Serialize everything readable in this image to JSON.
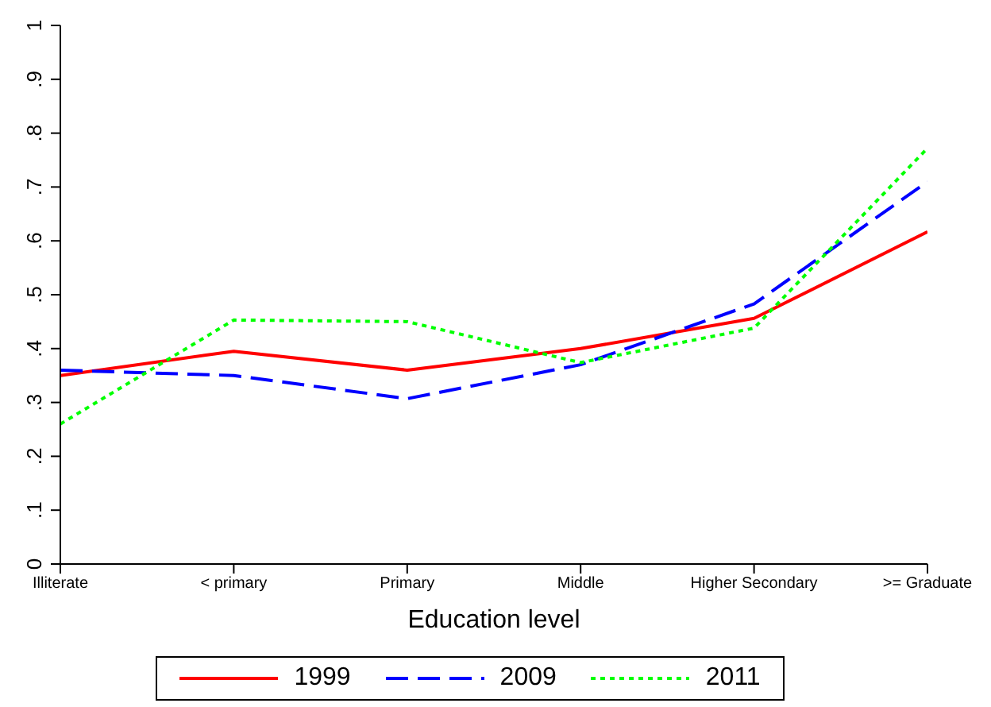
{
  "chart_data": {
    "type": "line",
    "xlabel": "Education level",
    "categories": [
      "Illiterate",
      "< primary",
      "Primary",
      "Middle",
      "Higher Secondary",
      ">= Graduate"
    ],
    "series": [
      {
        "name": "1999",
        "color": "#ff0000",
        "line_style": "solid",
        "values": [
          0.35,
          0.395,
          0.36,
          0.4,
          0.456,
          0.617
        ]
      },
      {
        "name": "2009",
        "color": "#0000ff",
        "line_style": "dashed",
        "values": [
          0.36,
          0.35,
          0.307,
          0.37,
          0.483,
          0.71
        ]
      },
      {
        "name": "2011",
        "color": "#00ff00",
        "line_style": "dotted",
        "values": [
          0.26,
          0.453,
          0.45,
          0.374,
          0.438,
          0.772
        ]
      }
    ],
    "ylim": [
      0,
      1
    ],
    "yticks": [
      {
        "value": 0,
        "label": "0"
      },
      {
        "value": 0.1,
        "label": ".1"
      },
      {
        "value": 0.2,
        "label": ".2"
      },
      {
        "value": 0.3,
        "label": ".3"
      },
      {
        "value": 0.4,
        "label": ".4"
      },
      {
        "value": 0.5,
        "label": ".5"
      },
      {
        "value": 0.6,
        "label": ".6"
      },
      {
        "value": 0.7,
        "label": ".7"
      },
      {
        "value": 0.8,
        "label": ".8"
      },
      {
        "value": 0.9,
        "label": ".9"
      },
      {
        "value": 1,
        "label": "1"
      }
    ],
    "grid": false,
    "legend": "bottom",
    "marker": "none"
  }
}
